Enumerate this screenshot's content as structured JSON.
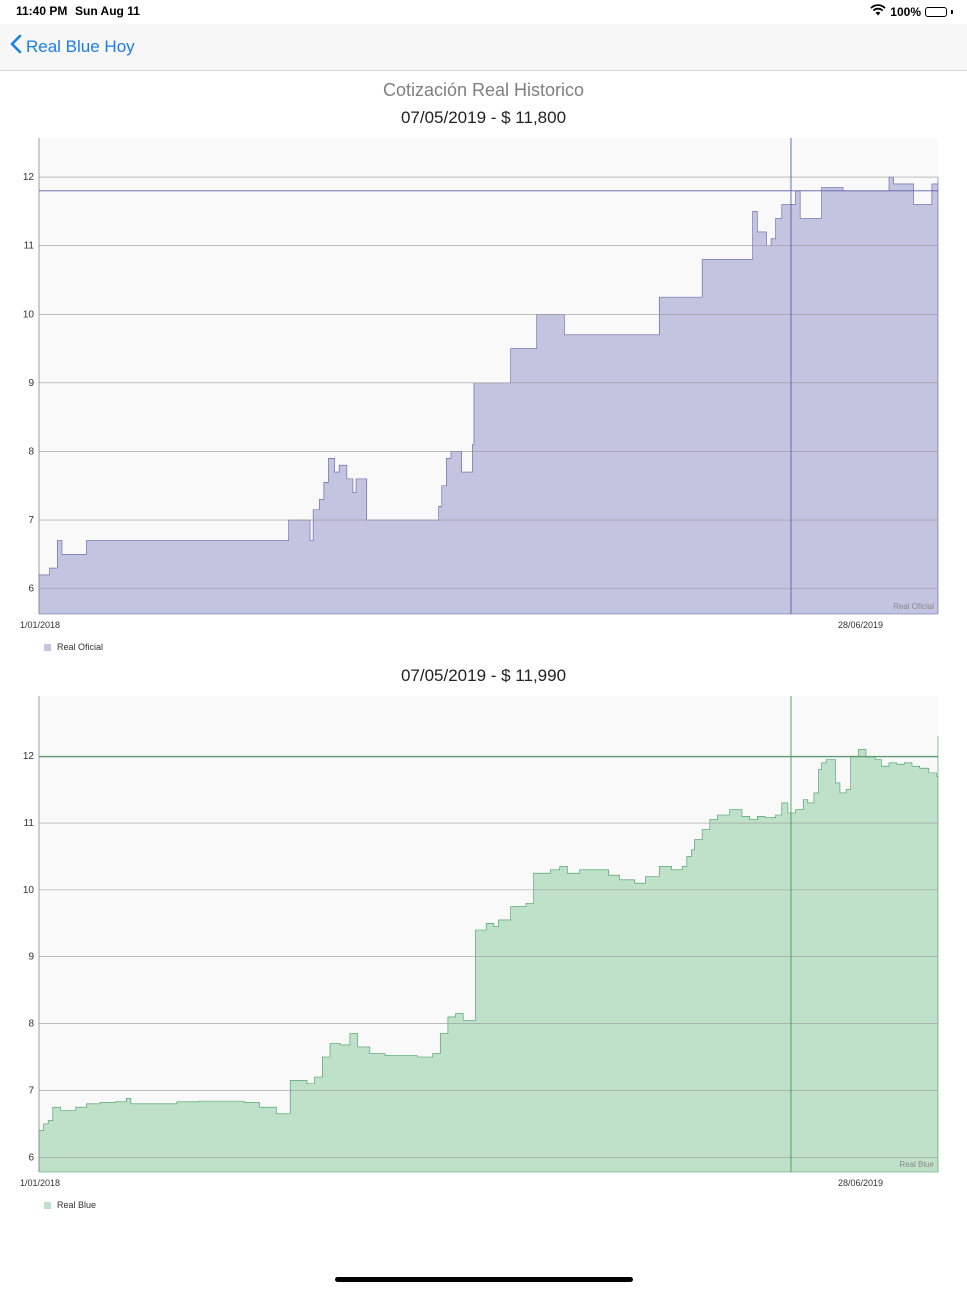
{
  "status_bar": {
    "time": "11:40 PM",
    "date": "Sun Aug 11",
    "battery": "100%"
  },
  "nav": {
    "back_label": "Real Blue Hoy"
  },
  "page": {
    "title": "Cotización Real Historico"
  },
  "colors": {
    "oficial_fill": "#c3c4e0",
    "oficial_line": "#5c5ea8",
    "blue_fill": "#bfe1c9",
    "blue_line": "#3f9a5d",
    "accent": "#1a7ee8"
  },
  "chart_data": [
    {
      "type": "area",
      "header": "07/05/2019 -  $ 11,800",
      "series_name": "Real Oficial",
      "watermark": "Real Oficial",
      "x_range": [
        "01/01/2018",
        "11/08/2019"
      ],
      "x_tick_labels": [
        "1/01/2018",
        "28/06/2019"
      ],
      "y_ticks": [
        6,
        7,
        8,
        9,
        10,
        11,
        12
      ],
      "ylim": [
        5.63,
        12.57
      ],
      "grid": true,
      "legend_position": "bottom-left",
      "highlight": {
        "date": "07/05/2019",
        "value": 11.8
      },
      "points": [
        [
          "01/01/2018",
          6.2
        ],
        [
          "08/01/2018",
          6.3
        ],
        [
          "13/01/2018",
          6.7
        ],
        [
          "16/01/2018",
          6.5
        ],
        [
          "01/02/2018",
          6.7
        ],
        [
          "15/02/2018",
          6.7
        ],
        [
          "01/03/2018",
          6.7
        ],
        [
          "15/03/2018",
          6.7
        ],
        [
          "01/04/2018",
          6.7
        ],
        [
          "15/04/2018",
          6.7
        ],
        [
          "01/05/2018",
          6.7
        ],
        [
          "15/05/2018",
          6.7
        ],
        [
          "01/06/2018",
          6.7
        ],
        [
          "13/06/2018",
          7.0
        ],
        [
          "20/06/2018",
          7.0
        ],
        [
          "27/06/2018",
          6.7
        ],
        [
          "29/06/2018",
          7.15
        ],
        [
          "03/07/2018",
          7.3
        ],
        [
          "06/07/2018",
          7.55
        ],
        [
          "09/07/2018",
          7.9
        ],
        [
          "13/07/2018",
          7.7
        ],
        [
          "16/07/2018",
          7.8
        ],
        [
          "21/07/2018",
          7.6
        ],
        [
          "25/07/2018",
          7.4
        ],
        [
          "27/07/2018",
          7.6
        ],
        [
          "01/08/2018",
          7.6
        ],
        [
          "03/08/2018",
          7.0
        ],
        [
          "15/08/2018",
          7.0
        ],
        [
          "01/09/2018",
          7.0
        ],
        [
          "15/09/2018",
          7.0
        ],
        [
          "19/09/2018",
          7.2
        ],
        [
          "21/09/2018",
          7.5
        ],
        [
          "24/09/2018",
          7.9
        ],
        [
          "27/09/2018",
          8.0
        ],
        [
          "04/10/2018",
          7.7
        ],
        [
          "11/10/2018",
          8.1
        ],
        [
          "12/10/2018",
          9.0
        ],
        [
          "01/11/2018",
          9.0
        ],
        [
          "05/11/2018",
          9.5
        ],
        [
          "19/11/2018",
          9.5
        ],
        [
          "22/11/2018",
          10.0
        ],
        [
          "08/12/2018",
          10.0
        ],
        [
          "10/12/2018",
          9.7
        ],
        [
          "31/12/2018",
          9.7
        ],
        [
          "15/01/2019",
          9.7
        ],
        [
          "10/02/2019",
          10.25
        ],
        [
          "10/03/2019",
          10.8
        ],
        [
          "05/04/2019",
          10.8
        ],
        [
          "12/04/2019",
          11.5
        ],
        [
          "15/04/2019",
          11.2
        ],
        [
          "18/04/2019",
          11.2
        ],
        [
          "21/04/2019",
          11.0
        ],
        [
          "24/04/2019",
          11.1
        ],
        [
          "27/04/2019",
          11.4
        ],
        [
          "01/05/2019",
          11.6
        ],
        [
          "10/05/2019",
          11.8
        ],
        [
          "13/05/2019",
          11.4
        ],
        [
          "24/05/2019",
          11.4
        ],
        [
          "27/05/2019",
          11.85
        ],
        [
          "10/06/2019",
          11.8
        ],
        [
          "01/07/2019",
          11.8
        ],
        [
          "08/07/2019",
          11.8
        ],
        [
          "10/07/2019",
          12.0
        ],
        [
          "13/07/2019",
          11.9
        ],
        [
          "24/07/2019",
          11.9
        ],
        [
          "26/07/2019",
          11.6
        ],
        [
          "01/08/2019",
          11.6
        ],
        [
          "04/08/2019",
          11.6
        ],
        [
          "07/08/2019",
          11.9
        ],
        [
          "11/08/2019",
          11.9
        ],
        [
          "14/08/2019",
          12.0
        ],
        [
          "28/08/2019",
          12.0
        ]
      ]
    },
    {
      "type": "area",
      "header": "07/05/2019 -  $ 11,990",
      "series_name": "Real Blue",
      "watermark": "Real Blue",
      "x_range": [
        "01/01/2018",
        "11/08/2019"
      ],
      "x_tick_labels": [
        "1/01/2018",
        "28/06/2019"
      ],
      "y_ticks": [
        6,
        7,
        8,
        9,
        10,
        11,
        12
      ],
      "ylim": [
        5.78,
        12.9
      ],
      "grid": true,
      "legend_position": "bottom-left",
      "highlight": {
        "date": "07/05/2019",
        "value": 11.99
      },
      "points": [
        [
          "01/01/2018",
          6.4
        ],
        [
          "04/01/2018",
          6.5
        ],
        [
          "07/01/2018",
          6.55
        ],
        [
          "10/01/2018",
          6.75
        ],
        [
          "15/01/2018",
          6.7
        ],
        [
          "20/01/2018",
          6.7
        ],
        [
          "25/01/2018",
          6.75
        ],
        [
          "01/02/2018",
          6.8
        ],
        [
          "10/02/2018",
          6.82
        ],
        [
          "20/02/2018",
          6.83
        ],
        [
          "27/02/2018",
          6.88
        ],
        [
          "02/03/2018",
          6.8
        ],
        [
          "10/03/2018",
          6.8
        ],
        [
          "20/03/2018",
          6.8
        ],
        [
          "01/04/2018",
          6.83
        ],
        [
          "15/04/2018",
          6.84
        ],
        [
          "01/05/2018",
          6.84
        ],
        [
          "15/05/2018",
          6.82
        ],
        [
          "25/05/2018",
          6.75
        ],
        [
          "05/06/2018",
          6.65
        ],
        [
          "14/06/2018",
          7.15
        ],
        [
          "25/06/2018",
          7.1
        ],
        [
          "30/06/2018",
          7.2
        ],
        [
          "05/07/2018",
          7.5
        ],
        [
          "10/07/2018",
          7.7
        ],
        [
          "17/07/2018",
          7.68
        ],
        [
          "23/07/2018",
          7.85
        ],
        [
          "28/07/2018",
          7.65
        ],
        [
          "05/08/2018",
          7.55
        ],
        [
          "15/08/2018",
          7.52
        ],
        [
          "25/08/2018",
          7.52
        ],
        [
          "05/09/2018",
          7.5
        ],
        [
          "15/09/2018",
          7.55
        ],
        [
          "20/09/2018",
          7.85
        ],
        [
          "25/09/2018",
          8.1
        ],
        [
          "30/09/2018",
          8.15
        ],
        [
          "05/10/2018",
          8.05
        ],
        [
          "10/10/2018",
          8.05
        ],
        [
          "13/10/2018",
          9.4
        ],
        [
          "20/10/2018",
          9.5
        ],
        [
          "25/10/2018",
          9.45
        ],
        [
          "28/10/2018",
          9.55
        ],
        [
          "05/11/2018",
          9.75
        ],
        [
          "15/11/2018",
          9.8
        ],
        [
          "20/11/2018",
          10.25
        ],
        [
          "01/12/2018",
          10.3
        ],
        [
          "07/12/2018",
          10.35
        ],
        [
          "12/12/2018",
          10.25
        ],
        [
          "20/12/2018",
          10.3
        ],
        [
          "01/01/2019",
          10.3
        ],
        [
          "08/01/2019",
          10.22
        ],
        [
          "15/01/2019",
          10.15
        ],
        [
          "25/01/2019",
          10.1
        ],
        [
          "01/02/2019",
          10.2
        ],
        [
          "10/02/2019",
          10.35
        ],
        [
          "18/02/2019",
          10.3
        ],
        [
          "25/02/2019",
          10.35
        ],
        [
          "28/02/2019",
          10.5
        ],
        [
          "03/03/2019",
          10.6
        ],
        [
          "05/03/2019",
          10.75
        ],
        [
          "10/03/2019",
          10.9
        ],
        [
          "15/03/2019",
          11.05
        ],
        [
          "20/03/2019",
          11.12
        ],
        [
          "28/03/2019",
          11.2
        ],
        [
          "05/04/2019",
          11.1
        ],
        [
          "10/04/2019",
          11.05
        ],
        [
          "15/04/2019",
          11.1
        ],
        [
          "20/04/2019",
          11.08
        ],
        [
          "27/04/2019",
          11.12
        ],
        [
          "01/05/2019",
          11.3
        ],
        [
          "05/05/2019",
          11.15
        ],
        [
          "10/05/2019",
          11.2
        ],
        [
          "15/05/2019",
          11.35
        ],
        [
          "18/05/2019",
          11.3
        ],
        [
          "22/05/2019",
          11.45
        ],
        [
          "25/05/2019",
          11.8
        ],
        [
          "27/05/2019",
          11.9
        ],
        [
          "30/05/2019",
          11.95
        ],
        [
          "05/06/2019",
          11.6
        ],
        [
          "08/06/2019",
          11.45
        ],
        [
          "12/06/2019",
          11.5
        ],
        [
          "15/06/2019",
          12.0
        ],
        [
          "20/06/2019",
          12.1
        ],
        [
          "25/06/2019",
          11.99
        ],
        [
          "01/07/2019",
          11.95
        ],
        [
          "05/07/2019",
          11.85
        ],
        [
          "10/07/2019",
          11.9
        ],
        [
          "15/07/2019",
          11.88
        ],
        [
          "20/07/2019",
          11.9
        ],
        [
          "25/07/2019",
          11.85
        ],
        [
          "30/07/2019",
          11.82
        ],
        [
          "05/08/2019",
          11.75
        ],
        [
          "10/08/2019",
          11.7
        ],
        [
          "15/08/2019",
          11.65
        ],
        [
          "20/08/2019",
          11.7
        ],
        [
          "25/08/2019",
          11.9
        ],
        [
          "01/09/2019",
          12.05
        ],
        [
          "05/09/2019",
          12.1
        ],
        [
          "10/09/2019",
          12.2
        ],
        [
          "14/09/2019",
          12.3
        ]
      ]
    }
  ]
}
